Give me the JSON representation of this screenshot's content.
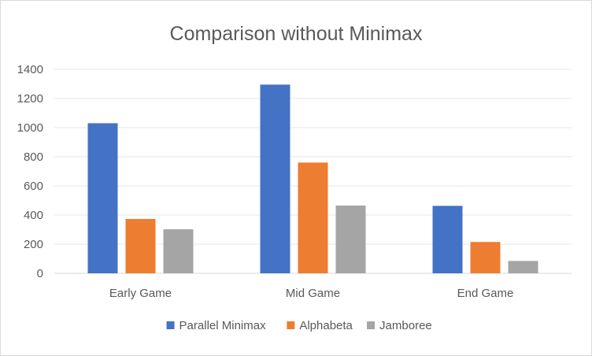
{
  "chart_data": {
    "type": "bar",
    "title": "Comparison without Minimax",
    "xlabel": "",
    "ylabel": "",
    "categories": [
      "Early Game",
      "Mid Game",
      "End Game"
    ],
    "series": [
      {
        "name": "Parallel Minimax",
        "color": "#4472c4",
        "values": [
          1030,
          1295,
          463
        ]
      },
      {
        "name": "Alphabeta",
        "color": "#ed7d31",
        "values": [
          373,
          760,
          215
        ]
      },
      {
        "name": "Jamboree",
        "color": "#a5a5a5",
        "values": [
          302,
          465,
          85
        ]
      }
    ],
    "yticks": [
      "0",
      "200",
      "400",
      "600",
      "800",
      "1000",
      "1200",
      "1400"
    ],
    "ylim": [
      0,
      1400
    ],
    "grid": true,
    "legend_position": "bottom"
  }
}
